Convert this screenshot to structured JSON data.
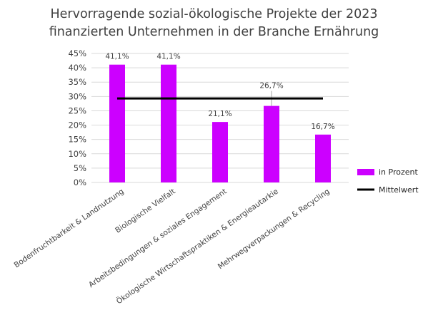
{
  "chart_data": {
    "type": "bar",
    "title_lines": [
      "Hervorragende sozial-ökologische Projekte der 2023",
      "finanzierten Unternehmen in der Branche Ernährung"
    ],
    "categories": [
      "Bodenfruchtbarkeit & Landnutzung",
      "Biologische Vielfalt",
      "Arbeitsbedingungen & soziales Engagement",
      "Ökologische Wirtschaftspraktiken & Energieautarkie",
      "Mehrwegverpackungen & Recycling"
    ],
    "series": [
      {
        "name": "in Prozent",
        "type": "bar",
        "color": "#CC00FF",
        "values": [
          41.1,
          41.1,
          21.1,
          26.7,
          16.7
        ],
        "labels": [
          "41,1%",
          "41,1%",
          "21,1%",
          "26,7%",
          "16,7%"
        ]
      },
      {
        "name": "Mittelwert",
        "type": "line",
        "color": "#000000",
        "values": [
          29.3,
          29.3,
          29.3,
          29.3,
          29.3
        ]
      }
    ],
    "y_ticks": [
      "0%",
      "5%",
      "10%",
      "15%",
      "20%",
      "25%",
      "30%",
      "35%",
      "40%",
      "45%"
    ],
    "ylim": [
      0,
      45
    ],
    "grid": true,
    "legend_position": "right"
  }
}
